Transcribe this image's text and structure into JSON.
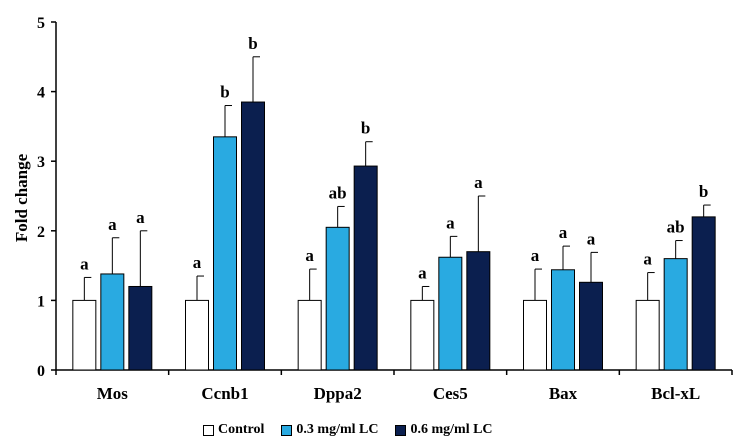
{
  "chart_data": {
    "type": "bar",
    "ylabel": "Fold change",
    "ylim": [
      0,
      5
    ],
    "yticks": [
      "0",
      "1",
      "2",
      "3",
      "4",
      "5"
    ],
    "categories": [
      "Mos",
      "Ccnb1",
      "Dppa2",
      "Ces5",
      "Bax",
      "Bcl-xL"
    ],
    "series": [
      {
        "name": "Control",
        "color": "#ffffff",
        "values": [
          1.0,
          1.0,
          1.0,
          1.0,
          1.0,
          1.0
        ],
        "error": [
          0.33,
          0.35,
          0.45,
          0.2,
          0.45,
          0.4
        ],
        "letters": [
          "a",
          "a",
          "a",
          "a",
          "a",
          "a"
        ]
      },
      {
        "name": "0.3 mg/ml LC",
        "color": "#29aae1",
        "values": [
          1.38,
          3.35,
          2.05,
          1.62,
          1.44,
          1.6
        ],
        "error": [
          0.52,
          0.45,
          0.3,
          0.3,
          0.34,
          0.26
        ],
        "letters": [
          "a",
          "b",
          "ab",
          "a",
          "a",
          "ab"
        ]
      },
      {
        "name": "0.6 mg/ml LC",
        "color": "#0b1f4f",
        "values": [
          1.2,
          3.85,
          2.93,
          1.7,
          1.26,
          2.2
        ],
        "error": [
          0.8,
          0.65,
          0.35,
          0.8,
          0.43,
          0.17
        ],
        "letters": [
          "a",
          "b",
          "b",
          "a",
          "a",
          "b"
        ]
      }
    ],
    "legend_position": "bottom"
  }
}
